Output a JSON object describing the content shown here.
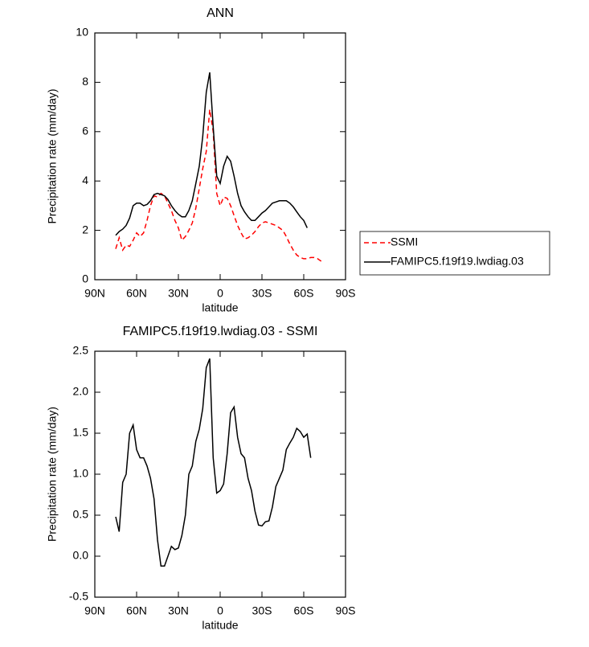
{
  "chart_data": [
    {
      "type": "line",
      "title": "ANN",
      "xlabel": "latitude",
      "ylabel": "Precipitation rate (mm/day)",
      "x": [
        75,
        72.5,
        70,
        67.5,
        65,
        62.5,
        60,
        57.5,
        55,
        52.5,
        50,
        47.5,
        45,
        42.5,
        40,
        37.5,
        35,
        32.5,
        30,
        27.5,
        25,
        22.5,
        20,
        17.5,
        15,
        12.5,
        10,
        7.5,
        5,
        2.5,
        0,
        -2.5,
        -5,
        -7.5,
        -10,
        -12.5,
        -15,
        -17.5,
        -20,
        -22.5,
        -25,
        -27.5,
        -30,
        -32.5,
        -35,
        -37.5,
        -40,
        -42.5,
        -45,
        -47.5,
        -50,
        -52.5,
        -55,
        -57.5,
        -60,
        -62.5,
        -65,
        -67.5,
        -70,
        -72.5
      ],
      "series": [
        {
          "name": "SSMI",
          "color": "#ff0000",
          "style": "dashed",
          "values": [
            1.25,
            1.7,
            1.2,
            1.4,
            1.35,
            1.6,
            1.9,
            1.75,
            1.9,
            2.4,
            3.0,
            3.4,
            3.35,
            3.5,
            3.4,
            3.1,
            2.8,
            2.4,
            2.1,
            1.6,
            1.75,
            2.0,
            2.3,
            2.9,
            3.7,
            4.5,
            5.2,
            6.9,
            6.0,
            3.5,
            3.0,
            3.35,
            3.3,
            3.0,
            2.6,
            2.2,
            1.9,
            1.65,
            1.7,
            1.8,
            1.95,
            2.15,
            2.3,
            2.35,
            2.3,
            2.25,
            2.2,
            2.1,
            2.0,
            1.75,
            1.45,
            1.2,
            1.0,
            0.9,
            0.85,
            0.85,
            0.9,
            0.9,
            0.85,
            0.75
          ]
        },
        {
          "name": "FAMIPC5.f19f19.lwdiag.03",
          "color": "#000000",
          "style": "solid",
          "values": [
            1.8,
            1.95,
            2.05,
            2.2,
            2.5,
            3.0,
            3.1,
            3.1,
            3.0,
            3.05,
            3.2,
            3.45,
            3.5,
            3.45,
            3.4,
            3.25,
            3.0,
            2.8,
            2.65,
            2.55,
            2.55,
            2.8,
            3.2,
            3.9,
            4.6,
            5.8,
            7.6,
            8.4,
            6.2,
            4.2,
            3.9,
            4.6,
            5.0,
            4.8,
            4.2,
            3.5,
            3.0,
            2.75,
            2.55,
            2.4,
            2.4,
            2.55,
            2.7,
            2.8,
            2.95,
            3.1,
            3.15,
            3.2,
            3.2,
            3.2,
            3.1,
            2.95,
            2.75,
            2.55,
            2.4,
            2.1,
            null,
            null,
            null,
            null
          ]
        }
      ],
      "xlim": [
        90,
        -90
      ],
      "xticks": [
        {
          "value": 90,
          "label": "90N"
        },
        {
          "value": 60,
          "label": "60N"
        },
        {
          "value": 30,
          "label": "30N"
        },
        0,
        {
          "value": -30,
          "label": "30S"
        },
        {
          "value": -60,
          "label": "60S"
        },
        {
          "value": -90,
          "label": "90S"
        }
      ],
      "ylim": [
        0,
        10
      ],
      "yticks": [
        0,
        2,
        4,
        6,
        8,
        10
      ],
      "legend": "right"
    },
    {
      "type": "line",
      "title": "FAMIPC5.f19f19.lwdiag.03 - SSMI",
      "xlabel": "latitude",
      "ylabel": "Precipitation rate (mm/day)",
      "x": [
        75,
        72.5,
        70,
        67.5,
        65,
        62.5,
        60,
        57.5,
        55,
        52.5,
        50,
        47.5,
        45,
        42.5,
        40,
        37.5,
        35,
        32.5,
        30,
        27.5,
        25,
        22.5,
        20,
        17.5,
        15,
        12.5,
        10,
        7.5,
        5,
        2.5,
        0,
        -2.5,
        -5,
        -7.5,
        -10,
        -12.5,
        -15,
        -17.5,
        -20,
        -22.5,
        -25,
        -27.5,
        -30,
        -32.5,
        -35,
        -37.5,
        -40,
        -42.5,
        -45,
        -47.5,
        -50,
        -52.5,
        -55,
        -57.5,
        -60,
        -62.5,
        -65
      ],
      "series": [
        {
          "color": "#000000",
          "style": "solid",
          "values": [
            0.48,
            0.3,
            0.9,
            1.0,
            1.5,
            1.6,
            1.3,
            1.2,
            1.2,
            1.1,
            0.95,
            0.7,
            0.2,
            -0.12,
            -0.12,
            0.0,
            0.12,
            0.08,
            0.1,
            0.25,
            0.5,
            1.0,
            1.1,
            1.4,
            1.55,
            1.8,
            2.3,
            2.41,
            1.2,
            0.77,
            0.8,
            0.88,
            1.25,
            1.75,
            1.82,
            1.45,
            1.25,
            1.2,
            0.95,
            0.8,
            0.55,
            0.38,
            0.37,
            0.42,
            0.43,
            0.6,
            0.85,
            0.95,
            1.05,
            1.3,
            1.38,
            1.45,
            1.56,
            1.52,
            1.45,
            1.49,
            1.2
          ]
        }
      ],
      "xlim": [
        90,
        -90
      ],
      "xticks": [
        {
          "value": 90,
          "label": "90N"
        },
        {
          "value": 60,
          "label": "60N"
        },
        {
          "value": 30,
          "label": "30N"
        },
        0,
        {
          "value": -30,
          "label": "30S"
        },
        {
          "value": -60,
          "label": "60S"
        },
        {
          "value": -90,
          "label": "90S"
        }
      ],
      "ylim": [
        -0.5,
        2.5
      ],
      "yticks": [
        -0.5,
        {
          "value": 0,
          "label": "0.0"
        },
        0.5,
        {
          "value": 1,
          "label": "1.0"
        },
        1.5,
        {
          "value": 2,
          "label": "2.0"
        },
        2.5
      ]
    }
  ]
}
